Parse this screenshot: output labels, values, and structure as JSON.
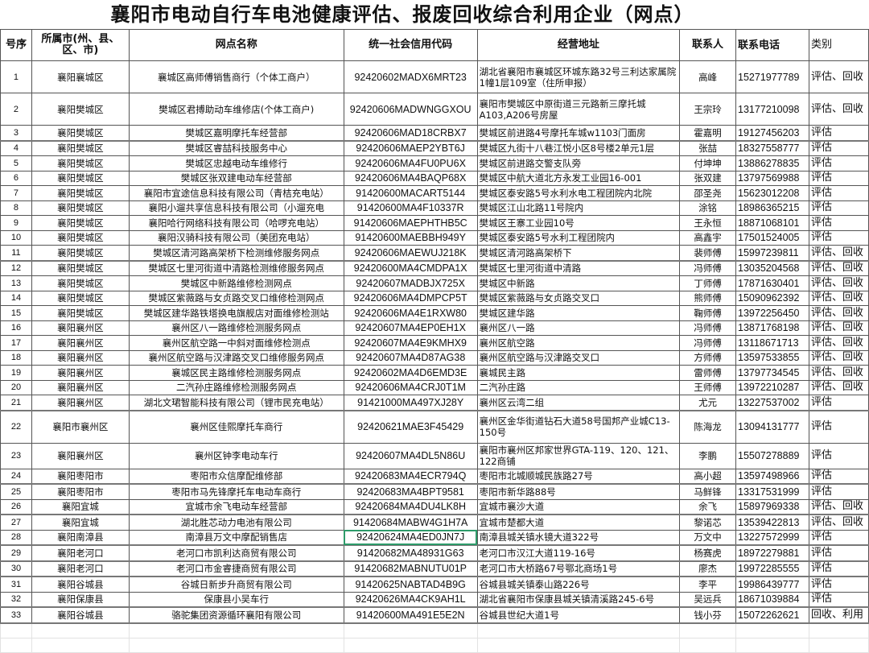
{
  "title": "襄阳市电动自行车电池健康评估、报废回收综合利用企业（网点）",
  "headers": [
    "号序",
    "所属市(州、县、区、市)",
    "网点名称",
    "统一社会信用代码",
    "经营地址",
    "联系人",
    "联系电话",
    "类别"
  ],
  "rows": [
    [
      "1",
      "襄阳襄城区",
      "襄城区高师傅销售商行（个体工商户）",
      "92420602MADX6MRT23",
      "湖北省襄阳市襄城区环城东路32号三利达家属院1幢1层109室（住所申报）",
      "高峰",
      "15271977789",
      "评估、回收"
    ],
    [
      "2",
      "襄阳樊城区",
      "樊城区君搏助动车维修店(个体工商户)",
      "92420606MADWNGGXOU",
      "襄阳市樊城区中原街道三元路新三摩托城A103,A206号房屋",
      "王宗玲",
      "13177210098",
      "评估、回收"
    ],
    [
      "3",
      "襄阳樊城区",
      "樊城区嘉明摩托车经营部",
      "92420606MAD18CRBX7",
      "樊城区前进路4号摩托车城w1103门面房",
      "霍嘉明",
      "19127456203",
      "评估"
    ],
    [
      "4",
      "襄阳樊城区",
      "樊城区睿喆科技服务中心",
      "92420606MAEP2YBT6J",
      "樊城区九街十八巷江悦小区8号楼2单元1层",
      "张喆",
      "18327558777",
      "评估"
    ],
    [
      "5",
      "襄阳樊城区",
      "樊城区忠越电动车维修行",
      "92420606MA4FU0PU6X",
      "樊城区前进路交警支队旁",
      "付坤坤",
      "13886278835",
      "评估"
    ],
    [
      "6",
      "襄阳樊城区",
      "樊城区张双建电动车经营部",
      "92420606MA4BAQP68X",
      "樊城区中航大道北方永发工业园16-001",
      "张双建",
      "13797569988",
      "评估"
    ],
    [
      "7",
      "襄阳樊城区",
      "襄阳市宜途信息科技有限公司（青桔充电站）",
      "91420600MACART5144",
      "樊城区泰安路5号水利水电工程团院内北院",
      "邵圣尧",
      "15623012208",
      "评估"
    ],
    [
      "8",
      "襄阳樊城区",
      "襄阳小遛共享信息科技有限公司（小遛充电",
      "91420600MA4F10337R",
      "樊城区江山北路11号院内",
      "涂铭",
      "18986365215",
      "评估"
    ],
    [
      "9",
      "襄阳樊城区",
      "襄阳哈行网络科技有限公司（哈啰充电站）",
      "91420606MAEPHTHB5C",
      "樊城区王寨工业园10号",
      "王永恒",
      "18871068101",
      "评估"
    ],
    [
      "10",
      "襄阳樊城区",
      "襄阳汉骑科技有限公司（美团充电站）",
      "91420600MAEBBH949Y",
      "樊城区泰安路5号水利工程团院内",
      "高鑫宇",
      "17501524005",
      "评估"
    ],
    [
      "11",
      "襄阳樊城区",
      "樊城区清河路高架桥下检测维修服务网点",
      "92420606MAEWUJ218K",
      "樊城区清河路高架桥下",
      "裴师傅",
      "15997239811",
      "评估、回收"
    ],
    [
      "12",
      "襄阳樊城区",
      "樊城区七里河街道中清路检测维修服务网点",
      "92420600MA4CMDPA1X",
      "樊城区七里河街道中清路",
      "冯师傅",
      "13035204568",
      "评估、回收"
    ],
    [
      "13",
      "襄阳樊城区",
      "樊城区中新路维修检测网点",
      "92420607MADBJX725X",
      "樊城区中新路",
      "丁师傅",
      "17871630401",
      "评估、回收"
    ],
    [
      "14",
      "襄阳樊城区",
      "樊城区紫薇路与女贞路交叉口维修检测网点",
      "92420606MA4DMPCP5T",
      "樊城区紫薇路与女贞路交叉口",
      "熊师傅",
      "15090962392",
      "评估、回收"
    ],
    [
      "15",
      "襄阳樊城区",
      "樊城区建华路铁塔换电旗舰店对面维修检测站",
      "92420606MA4E1RXW80",
      "樊城区建华路",
      "鞠师傅",
      "13972256450",
      "评估、回收"
    ],
    [
      "16",
      "襄阳襄州区",
      "襄州区八一路维修检测服务网点",
      "92420607MA4EP0EH1X",
      "襄州区八一路",
      "冯师傅",
      "13871768198",
      "评估、回收"
    ],
    [
      "17",
      "襄阳襄州区",
      "襄州区航空路一中斜对面维修检测点",
      "92420607MA4E9KMHX9",
      "襄州区航空路",
      "冯师傅",
      "13118671713",
      "评估、回收"
    ],
    [
      "18",
      "襄阳襄州区",
      "襄州区航空路与汉津路交叉口维修服务网点",
      "92420607MA4D87AG38",
      "襄州区航空路与汉津路交叉口",
      "方师傅",
      "13597533855",
      "评估、回收"
    ],
    [
      "19",
      "襄阳襄州区",
      "襄城区民主路维修检测服务网点",
      "92420602MA4D6EMD3E",
      "襄城民主路",
      "雷师傅",
      "13797734545",
      "评估、回收"
    ],
    [
      "20",
      "襄阳襄州区",
      "二汽孙庄路维修检测服务网点",
      "92420606MA4CRJ0T1M",
      "二汽孙庄路",
      "王师傅",
      "13972210287",
      "评估、回收"
    ],
    [
      "21",
      "襄阳襄州区",
      "湖北文珺智能科技有限公司（锂市民充电站）",
      "91421000MA497XJ28Y",
      "襄州区云湾二组",
      "尤元",
      "13227537002",
      "评估"
    ],
    [
      "22",
      "襄阳市襄州区",
      "襄州区佳熙摩托车商行",
      "92420621MAE3F45429",
      "襄州区金华街道钻石大道58号国邦产业城C13-150号",
      "陈海龙",
      "13094131777",
      "评估"
    ],
    [
      "23",
      "襄阳襄州区",
      "襄州区钟李电动车行",
      "92420607MA4DL5N86U",
      "襄阳市襄州区邦家世界GTA-119、120、121、122商铺",
      "李鹏",
      "15507278889",
      "评估"
    ],
    [
      "24",
      "襄阳枣阳市",
      "枣阳市众信摩配维修部",
      "92420683MA4ECR794Q",
      "枣阳市北城顺城民族路27号",
      "高小超",
      "13597498966",
      "评估"
    ],
    [
      "25",
      "襄阳枣阳市",
      "枣阳市马先锋摩托车电动车商行",
      "92420683MA4BPT9581",
      "枣阳市新华路88号",
      "马鲜锋",
      "13317531999",
      "评估"
    ],
    [
      "26",
      "襄阳宜城",
      "宜城市余飞电动车经营部",
      "92420684MA4DU4LK8H",
      "宜城市襄沙大道",
      "余飞",
      "15897969338",
      "评估、回收"
    ],
    [
      "27",
      "襄阳宜城",
      "湖北胜芯动力电池有限公司",
      "91420684MABW4G1H7A",
      "宜城市楚都大道",
      "黎诺芯",
      "13539422813",
      "评估、回收"
    ],
    [
      "28",
      "襄阳南漳县",
      "南漳县万文中摩配销售店",
      "92420624MA4ED0JN7J",
      "南漳县城关镇水镜大道322号",
      "万文中",
      "13227572999",
      "评估"
    ],
    [
      "29",
      "襄阳老河口",
      "老河口市凯利达商贸有限公司",
      "91420682MA48931G63",
      "老河口市汉江大道119-16号",
      "杨赛虎",
      "18972279881",
      "评估"
    ],
    [
      "30",
      "襄阳老河口",
      "老河口市金睿捷商贸有限公司",
      "91420682MABNUTU01P",
      "老河口市大桥路67号鄂北商场1号",
      "廖杰",
      "19972285555",
      "评估"
    ],
    [
      "31",
      "襄阳谷城县",
      "谷城日新步升商贸有限公司",
      "91420625NABTAD4B9G",
      "谷城县城关镇泰山路226号",
      "李平",
      "19986439777",
      "评估"
    ],
    [
      "32",
      "襄阳保康县",
      "保康县小吴车行",
      "92420626MA4CK9AH1L",
      "湖北省襄阳市保康县城关镇清溪路245-6号",
      "吴远兵",
      "18671039884",
      "评估"
    ],
    [
      "33",
      "襄阳谷城县",
      "骆驼集团资源循环襄阳有限公司",
      "91420600MA491E5E2N",
      "谷城县世纪大道1号",
      "钱小芬",
      "15072262621",
      "回收、利用"
    ]
  ]
}
